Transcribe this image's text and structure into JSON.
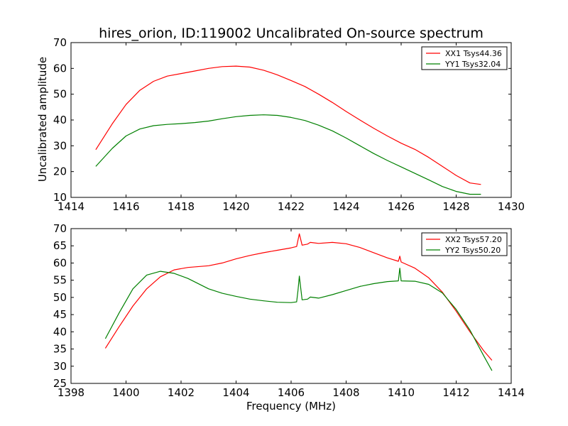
{
  "chart_data": [
    {
      "type": "line",
      "title": "hires_orion, ID:119002 Uncalibrated On-source spectrum",
      "xlabel": "",
      "ylabel": "Uncalibrated amplitude",
      "xlim": [
        1414,
        1430
      ],
      "ylim": [
        10,
        70
      ],
      "xticks": [
        "1414",
        "1416",
        "1418",
        "1420",
        "1422",
        "1424",
        "1426",
        "1428",
        "1430"
      ],
      "yticks": [
        "10",
        "20",
        "30",
        "40",
        "50",
        "60",
        "70"
      ],
      "grid": false,
      "legend_position": "top-right",
      "series": [
        {
          "name": "XX1 Tsys44.36",
          "color": "#ff0000",
          "x": [
            1414.9,
            1415.5,
            1416.0,
            1416.5,
            1417.0,
            1417.5,
            1418.0,
            1418.5,
            1419.0,
            1419.5,
            1420.0,
            1420.5,
            1421.0,
            1421.5,
            1422.0,
            1422.5,
            1423.0,
            1423.5,
            1424.0,
            1424.5,
            1425.0,
            1425.5,
            1426.0,
            1426.5,
            1427.0,
            1427.5,
            1428.0,
            1428.5,
            1428.9
          ],
          "y": [
            28.5,
            38.5,
            46.0,
            51.5,
            55.0,
            57.0,
            58.0,
            59.0,
            60.0,
            60.7,
            60.9,
            60.5,
            59.3,
            57.5,
            55.3,
            53.0,
            50.0,
            46.8,
            43.3,
            40.0,
            36.8,
            33.8,
            31.0,
            28.6,
            25.5,
            22.0,
            18.5,
            15.6,
            15.0
          ]
        },
        {
          "name": "YY1 Tsys32.04",
          "color": "#008000",
          "x": [
            1414.9,
            1415.5,
            1416.0,
            1416.5,
            1417.0,
            1417.5,
            1418.0,
            1418.5,
            1419.0,
            1419.5,
            1420.0,
            1420.5,
            1421.0,
            1421.5,
            1422.0,
            1422.5,
            1423.0,
            1423.5,
            1424.0,
            1424.5,
            1425.0,
            1425.5,
            1426.0,
            1426.5,
            1427.0,
            1427.5,
            1428.0,
            1428.5,
            1428.9
          ],
          "y": [
            22.0,
            29.0,
            33.8,
            36.5,
            37.8,
            38.3,
            38.6,
            39.0,
            39.6,
            40.5,
            41.3,
            41.8,
            42.0,
            41.8,
            41.0,
            39.8,
            38.0,
            35.8,
            33.0,
            30.0,
            27.0,
            24.3,
            21.8,
            19.3,
            16.8,
            14.2,
            12.3,
            11.2,
            11.2
          ]
        }
      ]
    },
    {
      "type": "line",
      "title": "",
      "xlabel": "Frequency (MHz)",
      "ylabel": "",
      "xlim": [
        1398,
        1414
      ],
      "ylim": [
        25,
        70
      ],
      "xticks": [
        "1398",
        "1400",
        "1402",
        "1404",
        "1406",
        "1408",
        "1410",
        "1412",
        "1414"
      ],
      "yticks": [
        "25",
        "30",
        "35",
        "40",
        "45",
        "50",
        "55",
        "60",
        "65",
        "70"
      ],
      "grid": false,
      "legend_position": "top-right",
      "series": [
        {
          "name": "XX2 Tsys57.20",
          "color": "#ff0000",
          "x": [
            1399.25,
            1399.75,
            1400.25,
            1400.75,
            1401.25,
            1401.75,
            1402.25,
            1403.0,
            1403.5,
            1404.0,
            1404.5,
            1405.0,
            1405.5,
            1406.0,
            1406.2,
            1406.3,
            1406.4,
            1406.6,
            1406.7,
            1407.0,
            1407.5,
            1408.0,
            1408.5,
            1409.0,
            1409.5,
            1409.9,
            1409.95,
            1410.0,
            1410.5,
            1411.0,
            1411.5,
            1412.0,
            1412.5,
            1413.0,
            1413.3
          ],
          "y": [
            35.2,
            41.5,
            47.5,
            52.5,
            56.0,
            58.0,
            58.7,
            59.2,
            60.0,
            61.2,
            62.2,
            63.0,
            63.7,
            64.4,
            64.8,
            68.5,
            65.2,
            65.5,
            66.0,
            65.7,
            66.0,
            65.6,
            64.5,
            63.0,
            61.5,
            60.5,
            62.0,
            60.3,
            58.5,
            55.7,
            51.5,
            46.0,
            40.0,
            34.5,
            31.7
          ]
        },
        {
          "name": "YY2 Tsys50.20",
          "color": "#008000",
          "x": [
            1399.25,
            1399.75,
            1400.25,
            1400.75,
            1401.25,
            1401.75,
            1402.25,
            1403.0,
            1403.5,
            1404.0,
            1404.5,
            1405.0,
            1405.5,
            1406.0,
            1406.2,
            1406.25,
            1406.3,
            1406.4,
            1406.6,
            1406.7,
            1407.0,
            1407.5,
            1408.0,
            1408.5,
            1409.0,
            1409.5,
            1409.9,
            1409.95,
            1410.0,
            1410.5,
            1411.0,
            1411.5,
            1412.0,
            1412.5,
            1413.0,
            1413.3
          ],
          "y": [
            38.0,
            45.5,
            52.5,
            56.5,
            57.6,
            57.0,
            55.5,
            52.5,
            51.2,
            50.3,
            49.5,
            49.0,
            48.6,
            48.5,
            48.7,
            52.0,
            56.2,
            49.3,
            49.5,
            50.1,
            49.8,
            50.8,
            52.0,
            53.2,
            54.0,
            54.6,
            54.8,
            58.5,
            54.8,
            54.7,
            53.8,
            51.3,
            46.5,
            40.5,
            33.0,
            28.7
          ]
        }
      ]
    }
  ]
}
